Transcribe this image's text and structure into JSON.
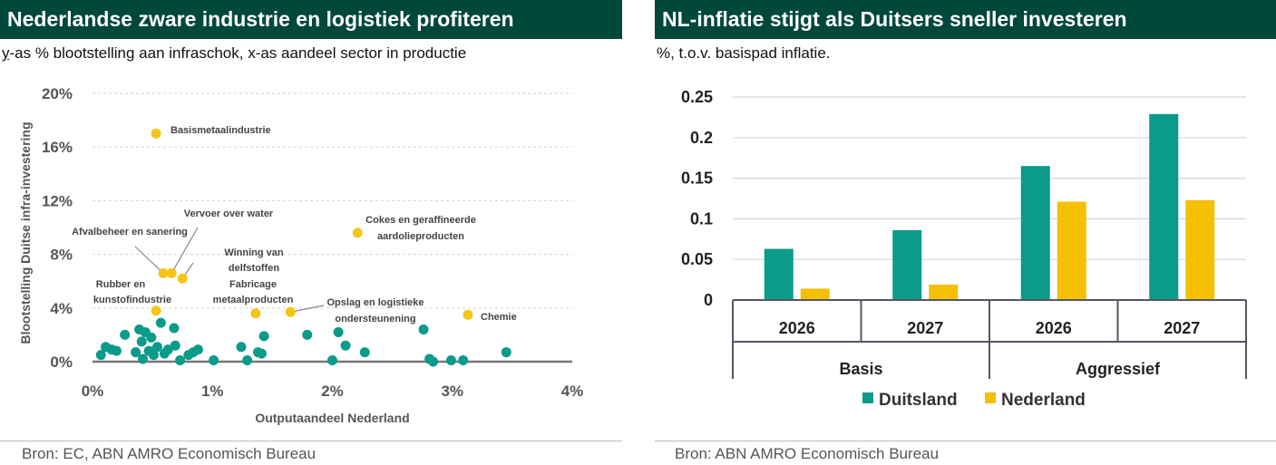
{
  "left": {
    "title": "Nederlandse zware industrie en logistiek profiteren",
    "subtitle_prefix": "y",
    "subtitle_rest": "-as % blootstelling aan infraschok, x-as aandeel sector in productie",
    "source": "Bron: EC, ABN AMRO Economisch Bureau"
  },
  "right": {
    "title": "NL-inflatie stijgt als Duitsers sneller investeren",
    "subtitle": "%, t.o.v. basispad inflatie.",
    "source": "Bron: ABN AMRO Economisch Bureau"
  },
  "chart_data": [
    {
      "type": "scatter",
      "xlabel": "Outputaandeel Nederland",
      "ylabel": "Blootstelling Duitse infra-investering",
      "xlim": [
        0,
        4
      ],
      "ylim": [
        0,
        20
      ],
      "xticks": [
        0,
        1,
        2,
        3,
        4
      ],
      "xtick_labels": [
        "0%",
        "1%",
        "2%",
        "3%",
        "4%"
      ],
      "yticks": [
        0,
        4,
        8,
        12,
        16,
        20
      ],
      "ytick_labels": [
        "0%",
        "4%",
        "8%",
        "12%",
        "16%",
        "20%"
      ],
      "colors": {
        "highlighted": "#f5c518",
        "other": "#0a9b8a"
      },
      "highlighted": [
        {
          "name": "Basismetaalindustrie",
          "x": 0.53,
          "y": 17.0
        },
        {
          "name": "Vervoer over water",
          "x": 0.66,
          "y": 6.6
        },
        {
          "name": "Afvalbeheer en sanering",
          "x": 0.59,
          "y": 6.6
        },
        {
          "name": "Winning van delfstoffen",
          "x": 0.75,
          "y": 6.2
        },
        {
          "name": "Cokes en geraffineerde aardolieproducten",
          "x": 2.21,
          "y": 9.6
        },
        {
          "name": "Rubber en kunstofindustrie",
          "x": 0.53,
          "y": 3.8
        },
        {
          "name": "Fabricage metaalproducten",
          "x": 1.36,
          "y": 3.6
        },
        {
          "name": "Opslag en logistieke ondersteunening",
          "x": 1.65,
          "y": 3.7
        },
        {
          "name": "Chemie",
          "x": 3.13,
          "y": 3.5
        }
      ],
      "others": [
        [
          0.07,
          0.5
        ],
        [
          0.11,
          1.1
        ],
        [
          0.16,
          0.9
        ],
        [
          0.2,
          0.8
        ],
        [
          0.27,
          2.0
        ],
        [
          0.36,
          0.7
        ],
        [
          0.39,
          2.4
        ],
        [
          0.41,
          1.5
        ],
        [
          0.42,
          0.2
        ],
        [
          0.44,
          2.2
        ],
        [
          0.47,
          0.8
        ],
        [
          0.49,
          1.8
        ],
        [
          0.51,
          0.5
        ],
        [
          0.54,
          1.1
        ],
        [
          0.57,
          2.9
        ],
        [
          0.6,
          0.6
        ],
        [
          0.63,
          0.9
        ],
        [
          0.68,
          2.5
        ],
        [
          0.69,
          1.2
        ],
        [
          0.73,
          0.1
        ],
        [
          0.8,
          0.5
        ],
        [
          0.84,
          0.7
        ],
        [
          0.88,
          0.9
        ],
        [
          1.01,
          0.1
        ],
        [
          1.24,
          1.1
        ],
        [
          1.29,
          0.1
        ],
        [
          1.38,
          0.7
        ],
        [
          1.41,
          0.6
        ],
        [
          1.43,
          1.9
        ],
        [
          1.79,
          2.0
        ],
        [
          2.0,
          0.1
        ],
        [
          2.05,
          2.2
        ],
        [
          2.11,
          1.2
        ],
        [
          2.27,
          0.7
        ],
        [
          2.76,
          2.4
        ],
        [
          2.81,
          0.2
        ],
        [
          2.84,
          0.0
        ],
        [
          2.99,
          0.1
        ],
        [
          3.09,
          0.1
        ],
        [
          3.45,
          0.7
        ]
      ]
    },
    {
      "type": "bar",
      "groups": [
        "Basis",
        "Aggressief"
      ],
      "categories": [
        "2026",
        "2027",
        "2026",
        "2027"
      ],
      "series": [
        {
          "name": "Duitsland",
          "color": "#0a9b8a",
          "values": [
            0.063,
            0.086,
            0.165,
            0.229
          ]
        },
        {
          "name": "Nederland",
          "color": "#f5c000",
          "values": [
            0.014,
            0.019,
            0.121,
            0.123
          ]
        }
      ],
      "ylim": [
        0,
        0.25
      ],
      "yticks": [
        0,
        0.05,
        0.1,
        0.15,
        0.2,
        0.25
      ],
      "ytick_labels": [
        "0",
        "0.05",
        "0.1",
        "0.15",
        "0.2",
        "0.25"
      ],
      "legend": "bottom"
    }
  ]
}
